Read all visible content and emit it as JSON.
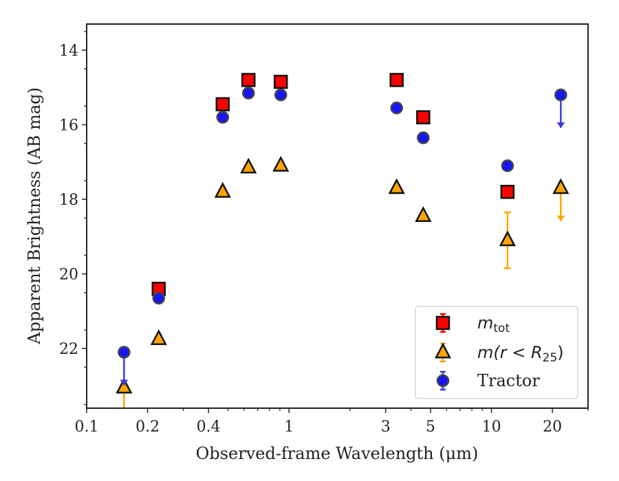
{
  "chart_data": {
    "type": "scatter",
    "title": "",
    "xlabel": "Observed-frame Wavelength (μm)",
    "ylabel": "Apparent Brightness (AB mag)",
    "xscale": "log",
    "xlim": [
      0.1,
      30
    ],
    "ylim": [
      23.6,
      13.3
    ],
    "y_inverted": true,
    "x_ticks": [
      0.1,
      0.2,
      0.4,
      1,
      3,
      5,
      10,
      20
    ],
    "x_tick_labels": [
      "0.1",
      "0.2",
      "0.4",
      "1",
      "3",
      "5",
      "10",
      "20"
    ],
    "y_ticks": [
      14,
      16,
      18,
      20,
      22
    ],
    "y_tick_labels": [
      "14",
      "16",
      "18",
      "20",
      "22"
    ],
    "legend_position": "lower-right",
    "grid": false,
    "series": [
      {
        "name": "m_tot",
        "legend_main": "m",
        "legend_sub": "tot",
        "marker": "square",
        "color": "#ff0000",
        "errcolor": "#ff0000",
        "points": [
          {
            "x": 0.227,
            "y": 20.4
          },
          {
            "x": 0.47,
            "y": 15.45
          },
          {
            "x": 0.63,
            "y": 14.8
          },
          {
            "x": 0.91,
            "y": 14.85
          },
          {
            "x": 3.4,
            "y": 14.8
          },
          {
            "x": 4.6,
            "y": 15.8
          },
          {
            "x": 12.0,
            "y": 17.8
          }
        ]
      },
      {
        "name": "m(r < R25)",
        "legend_main": "m(r < R",
        "legend_sub": "25",
        "legend_close": ")",
        "marker": "triangle",
        "color": "#ffa500",
        "errcolor": "#ffa500",
        "points": [
          {
            "x": 0.153,
            "y": 23.05,
            "upper_limit": true
          },
          {
            "x": 0.227,
            "y": 21.75
          },
          {
            "x": 0.47,
            "y": 17.8
          },
          {
            "x": 0.63,
            "y": 17.15
          },
          {
            "x": 0.91,
            "y": 17.1
          },
          {
            "x": 3.4,
            "y": 17.7
          },
          {
            "x": 4.6,
            "y": 18.45
          },
          {
            "x": 12.0,
            "y": 19.1,
            "yerr": 0.75
          },
          {
            "x": 22.0,
            "y": 17.7,
            "upper_limit": true
          }
        ]
      },
      {
        "name": "Tractor",
        "marker": "circle",
        "color": "#1515ff",
        "errcolor": "#3a3ae0",
        "points": [
          {
            "x": 0.153,
            "y": 22.1,
            "upper_limit": true
          },
          {
            "x": 0.227,
            "y": 20.65
          },
          {
            "x": 0.47,
            "y": 15.8
          },
          {
            "x": 0.63,
            "y": 15.15
          },
          {
            "x": 0.91,
            "y": 15.2
          },
          {
            "x": 3.4,
            "y": 15.55
          },
          {
            "x": 4.6,
            "y": 16.35
          },
          {
            "x": 12.0,
            "y": 17.1
          },
          {
            "x": 22.0,
            "y": 15.2,
            "upper_limit": true
          }
        ]
      }
    ]
  }
}
